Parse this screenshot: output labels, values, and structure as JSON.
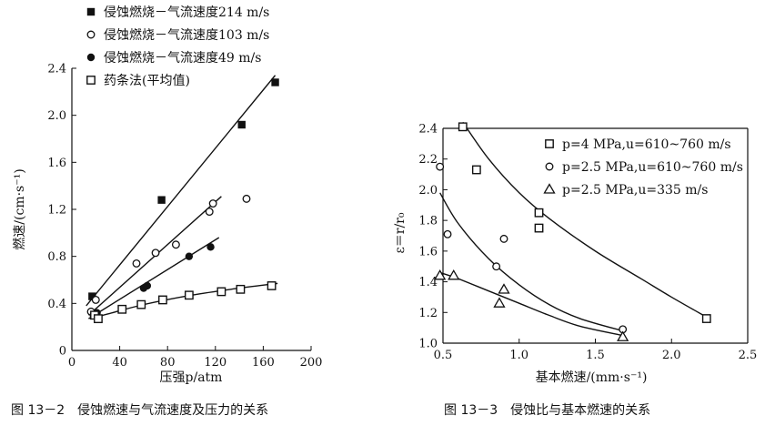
{
  "chart_data": [
    {
      "type": "scatter",
      "caption": "图 13－2　侵蚀燃速与气流速度及压力的关系",
      "xlabel": "压强p/atm",
      "ylabel": "燃速/(cm·s⁻¹)",
      "xlim": [
        0,
        200
      ],
      "ylim": [
        0,
        2.4
      ],
      "xticks": [
        0,
        40,
        80,
        120,
        160,
        200
      ],
      "yticks": [
        0,
        0.4,
        0.8,
        1.2,
        1.6,
        2.0,
        2.4
      ],
      "yticklabels": [
        "0",
        "0.4",
        "0.8",
        "1.2",
        "1.6",
        "2.0",
        "2.4"
      ],
      "legend_position": "top-left",
      "series": [
        {
          "name": "侵蚀燃烧－气流速度214 m/s",
          "marker": "filled-square",
          "x": [
            17,
            75,
            142,
            170
          ],
          "y": [
            0.46,
            1.28,
            1.92,
            2.28
          ],
          "fit": {
            "kind": "line",
            "x": [
              12,
              170
            ],
            "y": [
              0.38,
              2.34
            ]
          }
        },
        {
          "name": "侵蚀燃烧－气流速度103 m/s",
          "marker": "open-circle",
          "x": [
            16,
            20,
            54,
            70,
            87,
            115,
            118,
            146
          ],
          "y": [
            0.33,
            0.43,
            0.74,
            0.83,
            0.9,
            1.18,
            1.25,
            1.29
          ],
          "fit": {
            "kind": "line",
            "x": [
              14,
              125
            ],
            "y": [
              0.3,
              1.31
            ]
          }
        },
        {
          "name": "侵蚀燃烧－气流速度49 m/s",
          "marker": "filled-circle",
          "x": [
            18,
            21,
            60,
            63,
            98,
            116
          ],
          "y": [
            0.3,
            0.32,
            0.53,
            0.55,
            0.8,
            0.88
          ],
          "fit": {
            "kind": "line",
            "x": [
              14,
              123
            ],
            "y": [
              0.27,
              0.96
            ]
          }
        },
        {
          "name": "药条法(平均值)",
          "marker": "open-square",
          "x": [
            19,
            22,
            42,
            58,
            76,
            98,
            125,
            141,
            167
          ],
          "y": [
            0.3,
            0.27,
            0.35,
            0.39,
            0.43,
            0.47,
            0.5,
            0.52,
            0.55
          ],
          "fit": {
            "kind": "curve",
            "x": [
              15,
              30,
              60,
              100,
              140,
              172
            ],
            "y": [
              0.27,
              0.31,
              0.39,
              0.47,
              0.53,
              0.57
            ]
          }
        }
      ]
    },
    {
      "type": "scatter",
      "caption": "图 13－3　侵蚀比与基本燃速的关系",
      "xlabel": "基本燃速/(mm·s⁻¹)",
      "ylabel": "ε＝r/r₀",
      "xlim": [
        0.5,
        2.5
      ],
      "ylim": [
        1.0,
        2.4
      ],
      "xticks": [
        0.5,
        1.0,
        1.5,
        2.0,
        2.5
      ],
      "yticks": [
        1.0,
        1.2,
        1.4,
        1.6,
        1.8,
        2.0,
        2.2,
        2.4
      ],
      "yticklabels": [
        "1.0",
        "1.2",
        "1.4",
        "1.6",
        "1.8",
        "2.0",
        "2.2",
        "2.4"
      ],
      "legend_position": "top-right",
      "series": [
        {
          "name": "p=4 MPa,u=610~760 m/s",
          "marker": "open-square",
          "x": [
            0.63,
            0.72,
            1.13,
            1.13,
            2.23
          ],
          "y": [
            2.41,
            2.13,
            1.85,
            1.75,
            1.16
          ],
          "fit": {
            "kind": "curve",
            "x": [
              0.63,
              0.8,
              1.0,
              1.2,
              1.5,
              1.8,
              2.0,
              2.23
            ],
            "y": [
              2.44,
              2.2,
              1.98,
              1.81,
              1.6,
              1.42,
              1.3,
              1.17
            ]
          }
        },
        {
          "name": "p=2.5 MPa,u=610~760 m/s",
          "marker": "open-circle",
          "x": [
            0.48,
            0.53,
            0.85,
            0.9,
            1.68
          ],
          "y": [
            2.15,
            1.71,
            1.5,
            1.68,
            1.09
          ],
          "fit": {
            "kind": "curve",
            "x": [
              0.48,
              0.6,
              0.8,
              1.0,
              1.2,
              1.4,
              1.68
            ],
            "y": [
              1.98,
              1.78,
              1.55,
              1.38,
              1.25,
              1.16,
              1.08
            ]
          }
        },
        {
          "name": "p=2.5 MPa,u=335 m/s",
          "marker": "open-triangle",
          "x": [
            0.48,
            0.57,
            0.87,
            0.9,
            1.68
          ],
          "y": [
            1.44,
            1.44,
            1.26,
            1.35,
            1.04
          ],
          "fit": {
            "kind": "curve",
            "x": [
              0.48,
              0.6,
              0.8,
              1.0,
              1.2,
              1.4,
              1.68
            ],
            "y": [
              1.46,
              1.42,
              1.34,
              1.26,
              1.18,
              1.11,
              1.05
            ]
          }
        }
      ]
    }
  ]
}
